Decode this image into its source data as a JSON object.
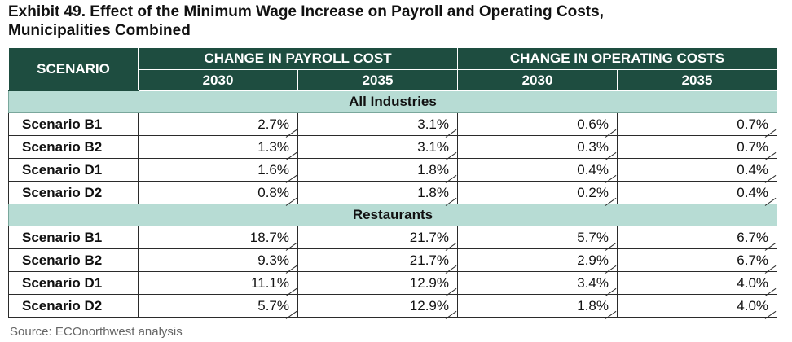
{
  "title": {
    "line1": "Exhibit 49. Effect of the Minimum Wage Increase on Payroll and Operating Costs,",
    "line2": "Municipalities Combined"
  },
  "table": {
    "scenario_header": "SCENARIO",
    "group_headers": [
      "CHANGE IN PAYROLL COST",
      "CHANGE IN OPERATING COSTS"
    ],
    "year_headers": [
      "2030",
      "2035",
      "2030",
      "2035"
    ],
    "sections": [
      {
        "label": "All Industries",
        "rows": [
          {
            "scenario": "Scenario B1",
            "values": [
              "2.7%",
              "3.1%",
              "0.6%",
              "0.7%"
            ]
          },
          {
            "scenario": "Scenario B2",
            "values": [
              "1.3%",
              "3.1%",
              "0.3%",
              "0.7%"
            ]
          },
          {
            "scenario": "Scenario D1",
            "values": [
              "1.6%",
              "1.8%",
              "0.4%",
              "0.4%"
            ]
          },
          {
            "scenario": "Scenario D2",
            "values": [
              "0.8%",
              "1.8%",
              "0.2%",
              "0.4%"
            ]
          }
        ]
      },
      {
        "label": "Restaurants",
        "rows": [
          {
            "scenario": "Scenario B1",
            "values": [
              "18.7%",
              "21.7%",
              "5.7%",
              "6.7%"
            ]
          },
          {
            "scenario": "Scenario B2",
            "values": [
              "9.3%",
              "21.7%",
              "2.9%",
              "6.7%"
            ]
          },
          {
            "scenario": "Scenario D1",
            "values": [
              "11.1%",
              "12.9%",
              "3.4%",
              "4.0%"
            ]
          },
          {
            "scenario": "Scenario D2",
            "values": [
              "5.7%",
              "12.9%",
              "1.8%",
              "4.0%"
            ]
          }
        ]
      }
    ]
  },
  "source": "Source: ECOnorthwest analysis",
  "colors": {
    "header_bg": "#1e4d40",
    "section_bg": "#b7dcd4"
  }
}
